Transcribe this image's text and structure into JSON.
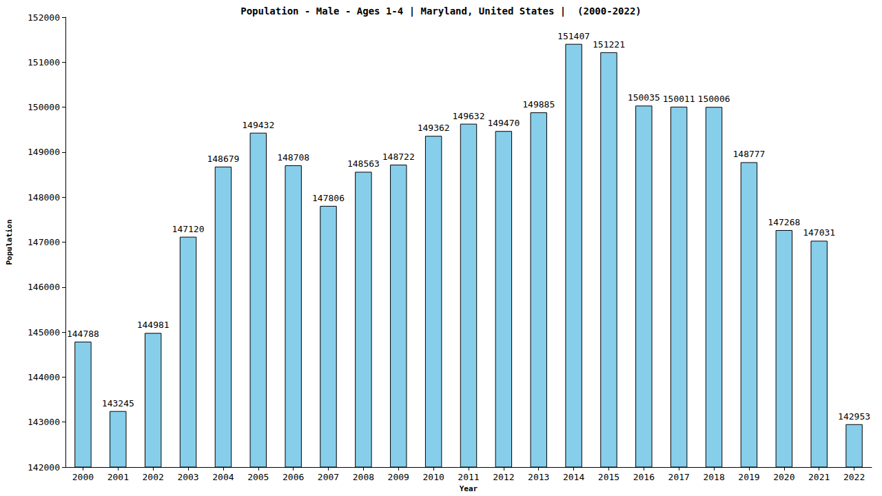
{
  "chart_data": {
    "type": "bar",
    "title": "Population - Male - Ages 1-4 | Maryland, United States |  (2000-2022)",
    "x_label": "Year",
    "y_label": "Population",
    "categories": [
      "2000",
      "2001",
      "2002",
      "2003",
      "2004",
      "2005",
      "2006",
      "2007",
      "2008",
      "2009",
      "2010",
      "2011",
      "2012",
      "2013",
      "2014",
      "2015",
      "2016",
      "2017",
      "2018",
      "2019",
      "2020",
      "2021",
      "2022"
    ],
    "values": [
      144788,
      143245,
      144981,
      147120,
      148679,
      149432,
      148708,
      147806,
      148563,
      148722,
      149362,
      149632,
      149470,
      149885,
      151407,
      151221,
      150035,
      150011,
      150006,
      148777,
      147268,
      147031,
      142953
    ],
    "color": "#87ceeb",
    "ylim": [
      142000,
      152000
    ],
    "yticks": [
      142000,
      143000,
      144000,
      145000,
      146000,
      147000,
      148000,
      149000,
      150000,
      151000,
      152000
    ],
    "grid": false,
    "data_labels": true
  }
}
